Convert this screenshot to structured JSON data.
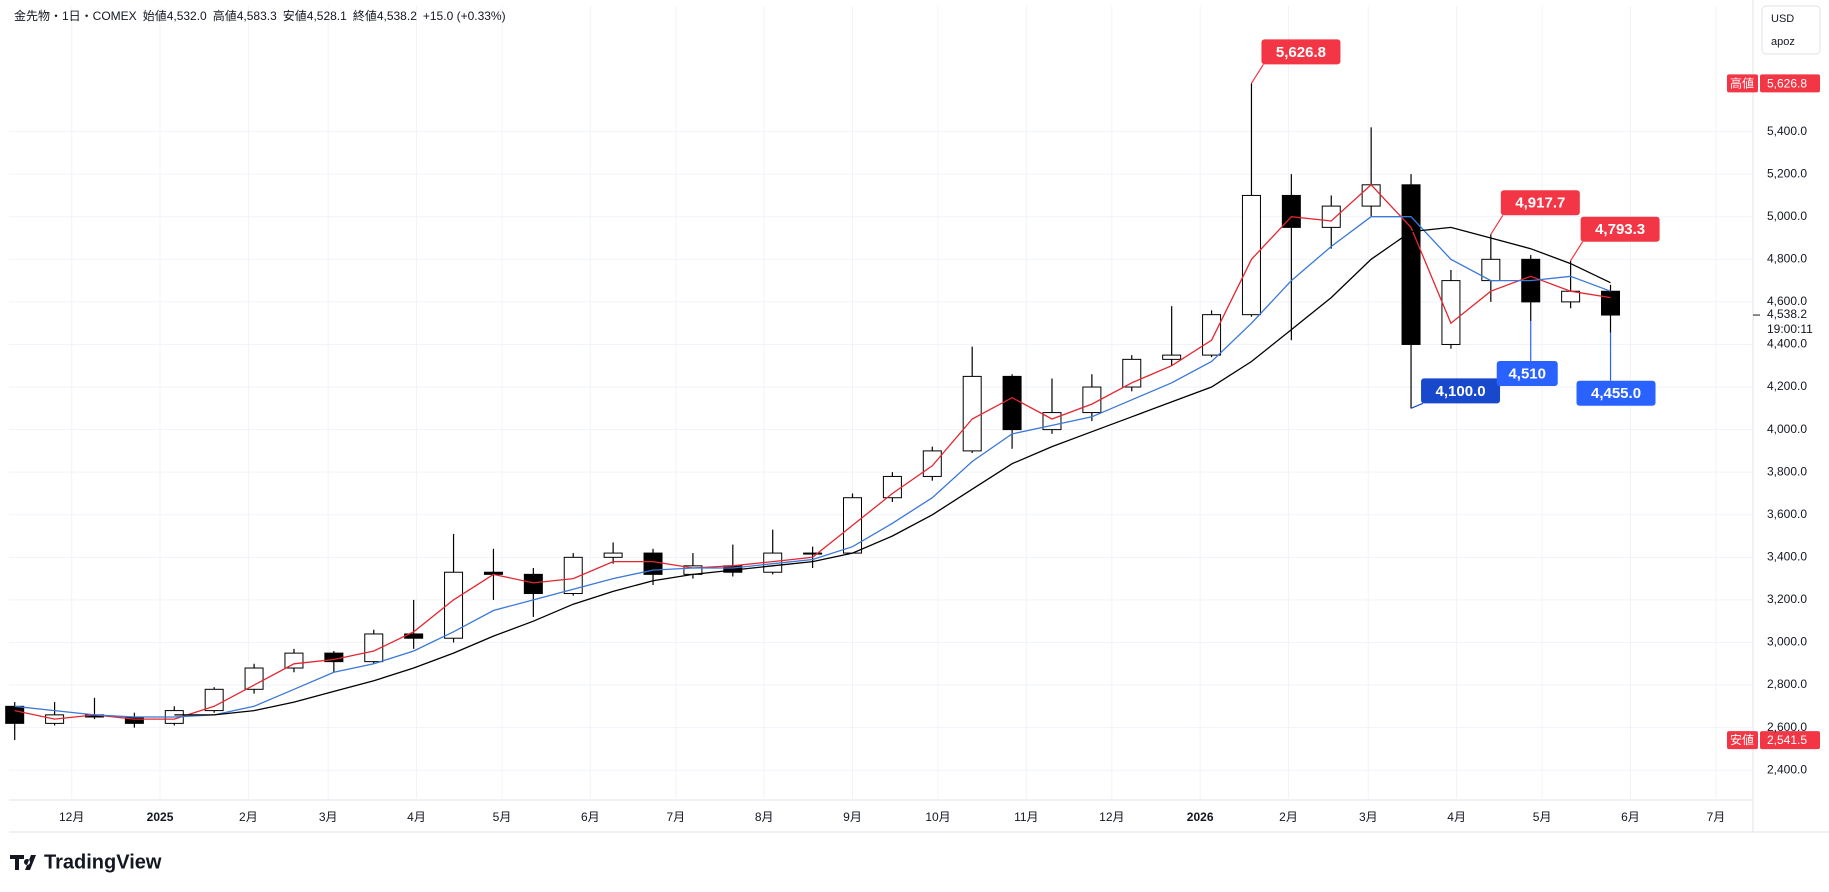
{
  "header": {
    "symbol": "金先物・1日・COMEX",
    "open": "始値4,532.0",
    "high": "高値4,583.3",
    "low": "安値4,528.1",
    "close": "終値4,538.2",
    "change": "+15.0 (+0.33%)"
  },
  "currency": "USD",
  "user": "apoz",
  "brand": "TradingView",
  "chart_data": {
    "type": "candlestick",
    "x": [
      "2024-11-11",
      "2024-11-25",
      "2024-12-09",
      "2024-12-23",
      "2025-01-06",
      "2025-01-20",
      "2025-02-03",
      "2025-02-17",
      "2025-03-03",
      "2025-03-17",
      "2025-03-31",
      "2025-04-14",
      "2025-04-28",
      "2025-05-12",
      "2025-05-26",
      "2025-06-09",
      "2025-06-23",
      "2025-07-07",
      "2025-07-21",
      "2025-08-04",
      "2025-08-18",
      "2025-09-01",
      "2025-09-15",
      "2025-09-29",
      "2025-10-13",
      "2025-10-27",
      "2025-11-10",
      "2025-11-24",
      "2025-12-08",
      "2025-12-22",
      "2026-01-05",
      "2026-01-19",
      "2026-02-02",
      "2026-02-16",
      "2026-03-02",
      "2026-03-16",
      "2026-03-30",
      "2026-04-13",
      "2026-04-27",
      "2026-05-11",
      "2026-05-25"
    ],
    "open": [
      2700,
      2620,
      2660,
      2650,
      2620,
      2680,
      2780,
      2880,
      2950,
      2910,
      3040,
      3020,
      3330,
      3320,
      3230,
      3400,
      3420,
      3320,
      3360,
      3330,
      3420,
      3420,
      3680,
      3780,
      3900,
      4250,
      4000,
      4080,
      4200,
      4330,
      4350,
      4540,
      5100,
      4950,
      5050,
      5150,
      4400,
      4700,
      4800,
      4600,
      4650
    ],
    "high": [
      2720,
      2720,
      2740,
      2670,
      2700,
      2790,
      2900,
      2970,
      2960,
      3060,
      3200,
      3510,
      3440,
      3350,
      3420,
      3470,
      3440,
      3420,
      3460,
      3530,
      3450,
      3700,
      3800,
      3920,
      4390,
      4260,
      4240,
      4260,
      4350,
      4580,
      4560,
      5626.8,
      5200,
      5100,
      5420,
      5200,
      4750,
      4917.7,
      4820,
      4793.3,
      4680
    ],
    "low": [
      2541.5,
      2610,
      2640,
      2600,
      2610,
      2670,
      2760,
      2860,
      2860,
      2900,
      2970,
      3000,
      3200,
      3120,
      3220,
      3370,
      3270,
      3300,
      3310,
      3320,
      3350,
      3420,
      3660,
      3760,
      3890,
      3910,
      3980,
      4040,
      4180,
      4300,
      4340,
      4530,
      4420,
      4850,
      5000,
      4100,
      4380,
      4600,
      4510,
      4570,
      4455
    ],
    "close": [
      2620,
      2660,
      2650,
      2620,
      2680,
      2780,
      2880,
      2950,
      2910,
      3040,
      3020,
      3330,
      3320,
      3230,
      3400,
      3420,
      3320,
      3360,
      3330,
      3420,
      3420,
      3680,
      3780,
      3900,
      4250,
      4000,
      4080,
      4200,
      4330,
      4350,
      4540,
      5100,
      4950,
      5050,
      5150,
      4400,
      4700,
      4800,
      4600,
      4650,
      4538.2
    ],
    "lines": [
      {
        "color": "#e5262f",
        "values": [
          2680,
          2640,
          2660,
          2640,
          2640,
          2700,
          2800,
          2900,
          2920,
          2960,
          3050,
          3200,
          3320,
          3280,
          3300,
          3380,
          3380,
          3350,
          3360,
          3380,
          3400,
          3550,
          3700,
          3830,
          4050,
          4150,
          4050,
          4120,
          4220,
          4300,
          4420,
          4800,
          5000,
          4980,
          5150,
          4950,
          4500,
          4650,
          4720,
          4650,
          4620
        ]
      },
      {
        "color": "#3b78d8",
        "values": [
          2700,
          2680,
          2660,
          2650,
          2650,
          2660,
          2700,
          2780,
          2860,
          2900,
          2960,
          3050,
          3150,
          3200,
          3250,
          3300,
          3340,
          3350,
          3350,
          3370,
          3390,
          3450,
          3560,
          3680,
          3850,
          3980,
          4020,
          4060,
          4140,
          4220,
          4320,
          4500,
          4700,
          4860,
          5000,
          5000,
          4800,
          4700,
          4700,
          4720,
          4650
        ]
      },
      {
        "color": "#000000",
        "values": [
          null,
          null,
          null,
          null,
          2660,
          2660,
          2680,
          2720,
          2770,
          2820,
          2880,
          2950,
          3030,
          3100,
          3180,
          3240,
          3290,
          3320,
          3340,
          3360,
          3380,
          3420,
          3500,
          3600,
          3720,
          3840,
          3920,
          3990,
          4060,
          4130,
          4200,
          4320,
          4470,
          4620,
          4800,
          4930,
          4950,
          4900,
          4850,
          4780,
          4690
        ]
      }
    ],
    "xlim": [
      "2024-11-09",
      "2026-07-14"
    ],
    "xticks": [
      {
        "value": "2024-12-01",
        "label": "12月"
      },
      {
        "value": "2025-01-01",
        "label": "2025"
      },
      {
        "value": "2025-02-01",
        "label": "2月"
      },
      {
        "value": "2025-03-01",
        "label": "3月"
      },
      {
        "value": "2025-04-01",
        "label": "4月"
      },
      {
        "value": "2025-05-01",
        "label": "5月"
      },
      {
        "value": "2025-06-01",
        "label": "6月"
      },
      {
        "value": "2025-07-01",
        "label": "7月"
      },
      {
        "value": "2025-08-01",
        "label": "8月"
      },
      {
        "value": "2025-09-01",
        "label": "9月"
      },
      {
        "value": "2025-10-01",
        "label": "10月"
      },
      {
        "value": "2025-11-01",
        "label": "11月"
      },
      {
        "value": "2025-12-01",
        "label": "12月"
      },
      {
        "value": "2026-01-01",
        "label": "2026"
      },
      {
        "value": "2026-02-01",
        "label": "2月"
      },
      {
        "value": "2026-03-01",
        "label": "3月"
      },
      {
        "value": "2026-04-01",
        "label": "4月"
      },
      {
        "value": "2026-05-01",
        "label": "5月"
      },
      {
        "value": "2026-06-01",
        "label": "6月"
      },
      {
        "value": "2026-07-01",
        "label": "7月"
      }
    ],
    "ylim": [
      2260,
      5990
    ],
    "yticks": [
      {
        "value": 2400,
        "label": "2,400.0"
      },
      {
        "value": 2600,
        "label": "2,600.0"
      },
      {
        "value": 2800,
        "label": "2,800.0"
      },
      {
        "value": 3000,
        "label": "3,000.0"
      },
      {
        "value": 3200,
        "label": "3,200.0"
      },
      {
        "value": 3400,
        "label": "3,400.0"
      },
      {
        "value": 3600,
        "label": "3,600.0"
      },
      {
        "value": 3800,
        "label": "3,800.0"
      },
      {
        "value": 4000,
        "label": "4,000.0"
      },
      {
        "value": 4200,
        "label": "4,200.0"
      },
      {
        "value": 4400,
        "label": "4,400.0"
      },
      {
        "value": 4600,
        "label": "4,600.0"
      },
      {
        "value": 4800,
        "label": "4,800.0"
      },
      {
        "value": 5000,
        "label": "5,000.0"
      },
      {
        "value": 5200,
        "label": "5,200.0"
      },
      {
        "value": 5400,
        "label": "5,400.0"
      }
    ],
    "grid": true,
    "annotations": [
      {
        "x": "2026-01-19",
        "value": 5626.8,
        "label": "5,626.8",
        "color": "#f23645"
      },
      {
        "x": "2026-04-13",
        "value": 4917.7,
        "label": "4,917.7",
        "color": "#f23645"
      },
      {
        "x": "2026-05-11",
        "value": 4793.3,
        "label": "4,793.3",
        "color": "#f23645"
      },
      {
        "x": "2026-03-16",
        "value": 4100,
        "label": "4,100.0",
        "color": "#1848cc"
      },
      {
        "x": "2026-04-27",
        "value": 4510,
        "label": "4,510",
        "color": "#2962ff"
      },
      {
        "x": "2026-05-25",
        "value": 4455,
        "label": "4,455.0",
        "color": "#2962ff"
      }
    ],
    "high_tag": {
      "name": "高値",
      "value": 5626.8,
      "label": "5,626.8",
      "color": "#f23645"
    },
    "low_tag": {
      "name": "安値",
      "value": 2541.5,
      "label": "2,541.5",
      "color": "#f23645"
    },
    "last_price": {
      "value": 4538.2,
      "label": "4,538.2",
      "countdown": "19:00:11"
    }
  }
}
